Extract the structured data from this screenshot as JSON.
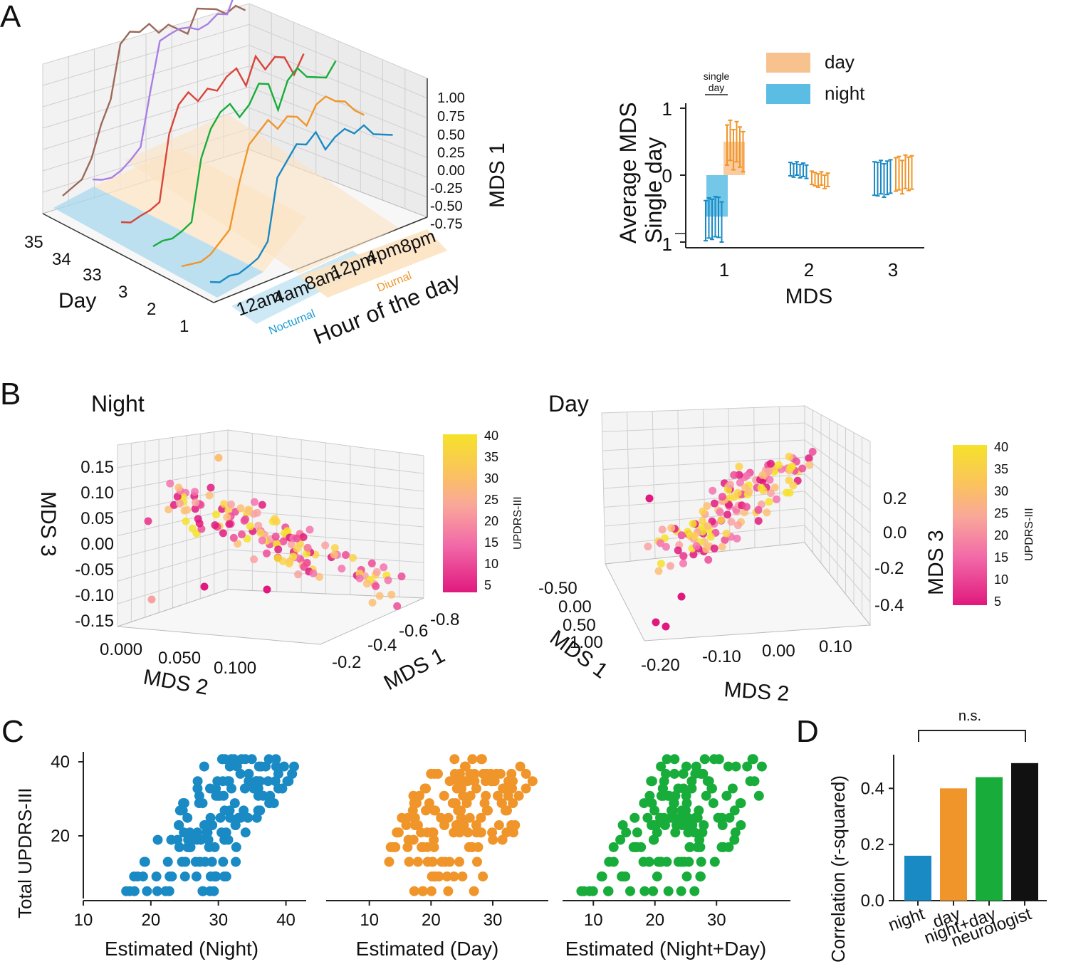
{
  "panels": {
    "a": "A",
    "b": "B",
    "c": "C",
    "d": "D"
  },
  "colors": {
    "night": "#1a8ac4",
    "day": "#f0952a",
    "combined": "#18ad3a",
    "neurologist": "#111111",
    "grid": "#cfcfcf",
    "mds_purple": "#a97ee2",
    "mds_brown": "#9b6a5c",
    "mds_red": "#d8453a"
  },
  "chart_data": [
    {
      "id": "A-left",
      "type": "line",
      "title": "",
      "zlabel": "MDS 1",
      "xlabel": "Hour of the day",
      "ylabel": "Day",
      "z_ticks": [
        "1.00",
        "0.75",
        "0.50",
        "0.25",
        "0.00",
        "-0.25",
        "-0.50",
        "-0.75"
      ],
      "hour_ticks": [
        "12am",
        "4am",
        "8am",
        "12pm",
        "4pm",
        "8pm"
      ],
      "day_ticks": [
        "35",
        "34",
        "33",
        "3",
        "2",
        "1"
      ],
      "band_labels": [
        "Nocturnal",
        "Diurnal"
      ],
      "series": [
        {
          "name": "day 35 (brown)",
          "values": [
            -0.6,
            -0.55,
            -0.5,
            -0.3,
            0.05,
            0.3,
            0.9,
            1.0,
            0.95,
            1.0,
            0.85,
            0.9,
            0.8,
            0.7,
            0.95,
            0.9,
            0.85,
            0.75,
            0.8,
            0.7
          ]
        },
        {
          "name": "day 34 (purple)",
          "values": [
            -0.55,
            -0.6,
            -0.62,
            -0.58,
            -0.5,
            -0.4,
            0.2,
            0.75,
            0.78,
            0.8,
            0.77,
            0.7,
            0.72,
            0.79,
            0.74,
            1.0,
            0.9,
            0.88,
            0.95,
            0.98
          ]
        },
        {
          "name": "day 33 (red)",
          "values": [
            -0.6,
            -0.65,
            -0.62,
            -0.6,
            -0.55,
            0.2,
            0.5,
            0.6,
            0.45,
            0.55,
            0.48,
            0.6,
            0.65,
            0.4,
            0.7,
            0.5,
            0.6,
            0.55,
            0.3,
            0.5
          ]
        },
        {
          "name": "day 3 (green)",
          "values": [
            -0.7,
            -0.68,
            -0.7,
            -0.66,
            -0.6,
            0.1,
            0.4,
            0.55,
            0.6,
            0.4,
            0.5,
            0.7,
            0.65,
            0.3,
            0.6,
            0.7,
            0.55,
            0.5,
            0.45,
            0.6
          ]
        },
        {
          "name": "day 2 (orange)",
          "values": [
            -0.7,
            -0.72,
            -0.74,
            -0.7,
            -0.6,
            -0.5,
            0.0,
            0.4,
            0.5,
            0.6,
            0.45,
            0.55,
            0.5,
            0.35,
            0.55,
            0.6,
            0.5,
            0.45,
            0.3,
            0.2
          ]
        },
        {
          "name": "day 1 (blue)",
          "values": [
            -0.7,
            -0.75,
            -0.72,
            -0.74,
            -0.7,
            -0.65,
            -0.5,
            0.2,
            0.35,
            0.5,
            0.45,
            0.55,
            0.3,
            0.4,
            0.45,
            0.35,
            0.4,
            0.25,
            0.2,
            0.15
          ]
        }
      ]
    },
    {
      "id": "A-right",
      "type": "scatter",
      "ylabel": "Average MDS\nSingle day",
      "xlabel": "MDS",
      "categories": [
        "1",
        "2",
        "3"
      ],
      "yticks": [
        "1",
        "0",
        "1"
      ],
      "ylim": [
        -1,
        1
      ],
      "annotation": "single\nday",
      "legend": [
        "day",
        "night"
      ],
      "series": [
        {
          "name": "night",
          "values": [
            [
              -0.68,
              -0.64,
              -0.66,
              -0.62,
              -0.63,
              -0.7
            ],
            [
              0.09,
              0.07,
              0.1,
              0.06,
              0.08,
              0.05
            ],
            [
              -0.05,
              -0.06,
              -0.03,
              -0.08,
              -0.04,
              -0.02
            ]
          ]
        },
        {
          "name": "day",
          "values": [
            [
              0.45,
              0.52,
              0.38,
              0.5,
              0.42,
              0.35
            ],
            [
              -0.04,
              -0.06,
              -0.08,
              -0.05,
              -0.1,
              -0.07
            ],
            [
              0.01,
              0.03,
              -0.03,
              0.05,
              0.02,
              0.04
            ]
          ]
        }
      ]
    },
    {
      "id": "B-night",
      "type": "scatter",
      "title": "Night",
      "xlabel": "MDS 2",
      "ylabel": "MDS 1",
      "zlabel": "MDS 3",
      "z_ticks": [
        "0.15",
        "0.10",
        "0.05",
        "0.00",
        "-0.05",
        "-0.10",
        "-0.15"
      ],
      "x_ticks": [
        "0.000",
        "0.050",
        "0.100"
      ],
      "y_ticks": [
        "-0.2",
        "-0.4",
        "-0.6",
        "-0.8"
      ],
      "colorbar_label": "UPDRS-III",
      "colorbar_ticks": [
        "40",
        "35",
        "30",
        "25",
        "20",
        "15",
        "10",
        "5"
      ]
    },
    {
      "id": "B-day",
      "type": "scatter",
      "title": "Day",
      "xlabel": "MDS 2",
      "ylabel": "MDS 1",
      "zlabel": "MDS 3",
      "z_ticks": [
        "0.2",
        "0.0",
        "-0.2",
        "-0.4"
      ],
      "x_ticks": [
        "-0.20",
        "-0.10",
        "0.00",
        "0.10"
      ],
      "y_ticks": [
        "-0.50",
        "0.00",
        "0.50",
        "1.00"
      ],
      "colorbar_label": "UPDRS-III",
      "colorbar_ticks": [
        "40",
        "35",
        "30",
        "25",
        "20",
        "15",
        "10",
        "5"
      ]
    },
    {
      "id": "C",
      "type": "scatter",
      "ylabel": "Total UPDRS-III",
      "yticks": [
        "40",
        "20"
      ],
      "ylim": [
        2,
        42
      ],
      "subplots": [
        {
          "name": "Night",
          "xlabel": "Estimated (Night)",
          "xticks": [
            "10",
            "20",
            "30",
            "40"
          ],
          "xlim": [
            10,
            43
          ]
        },
        {
          "name": "Day",
          "xlabel": "Estimated (Day)",
          "xticks": [
            "10",
            "20",
            "30"
          ],
          "xlim": [
            3,
            39
          ]
        },
        {
          "name": "Night+Day",
          "xlabel": "Estimated (Night+Day)",
          "xticks": [
            "10",
            "20",
            "30"
          ],
          "xlim": [
            5,
            42
          ]
        }
      ]
    },
    {
      "id": "D",
      "type": "bar",
      "ylabel": "Correlation (r-squared)",
      "categories": [
        "night",
        "day",
        "night+day",
        "neurologist"
      ],
      "values": [
        0.16,
        0.4,
        0.44,
        0.49
      ],
      "yticks": [
        "0.0",
        "0.2",
        "0.4"
      ],
      "ylim": [
        0,
        0.52
      ],
      "annotation": "n.s."
    }
  ]
}
